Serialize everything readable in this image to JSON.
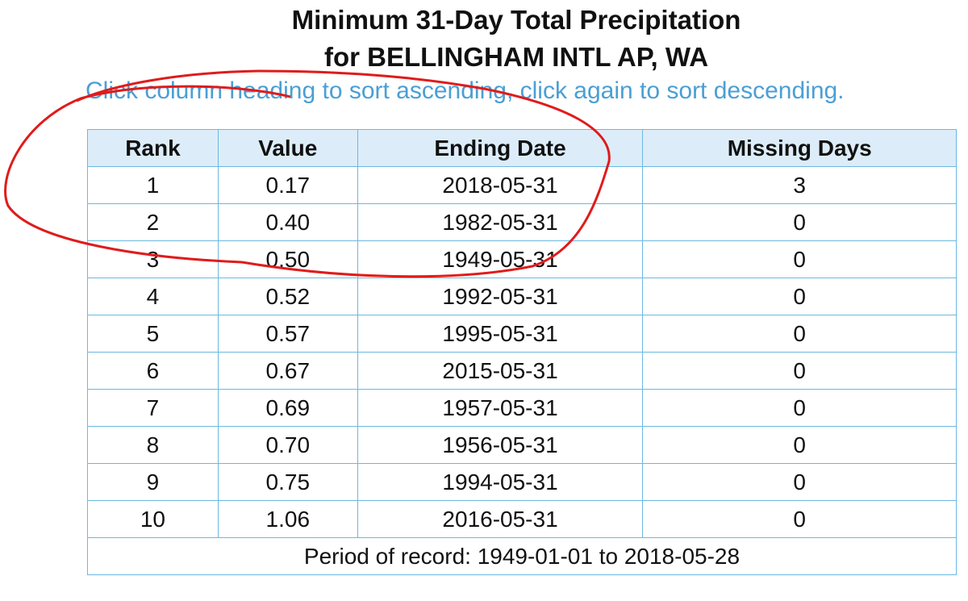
{
  "header": {
    "title": "Minimum 31-Day Total Precipitation",
    "subtitle": "for BELLINGHAM INTL AP, WA",
    "instruction": "Click column heading to sort ascending, click again to sort descending."
  },
  "table": {
    "columns": [
      "Rank",
      "Value",
      "Ending Date",
      "Missing Days"
    ],
    "rows": [
      [
        "1",
        "0.17",
        "2018-05-31",
        "3"
      ],
      [
        "2",
        "0.40",
        "1982-05-31",
        "0"
      ],
      [
        "3",
        "0.50",
        "1949-05-31",
        "0"
      ],
      [
        "4",
        "0.52",
        "1992-05-31",
        "0"
      ],
      [
        "5",
        "0.57",
        "1995-05-31",
        "0"
      ],
      [
        "6",
        "0.67",
        "2015-05-31",
        "0"
      ],
      [
        "7",
        "0.69",
        "1957-05-31",
        "0"
      ],
      [
        "8",
        "0.70",
        "1956-05-31",
        "0"
      ],
      [
        "9",
        "0.75",
        "1994-05-31",
        "0"
      ],
      [
        "10",
        "1.06",
        "2016-05-31",
        "0"
      ]
    ],
    "footer": "Period of record: 1949-01-01 to 2018-05-28"
  }
}
